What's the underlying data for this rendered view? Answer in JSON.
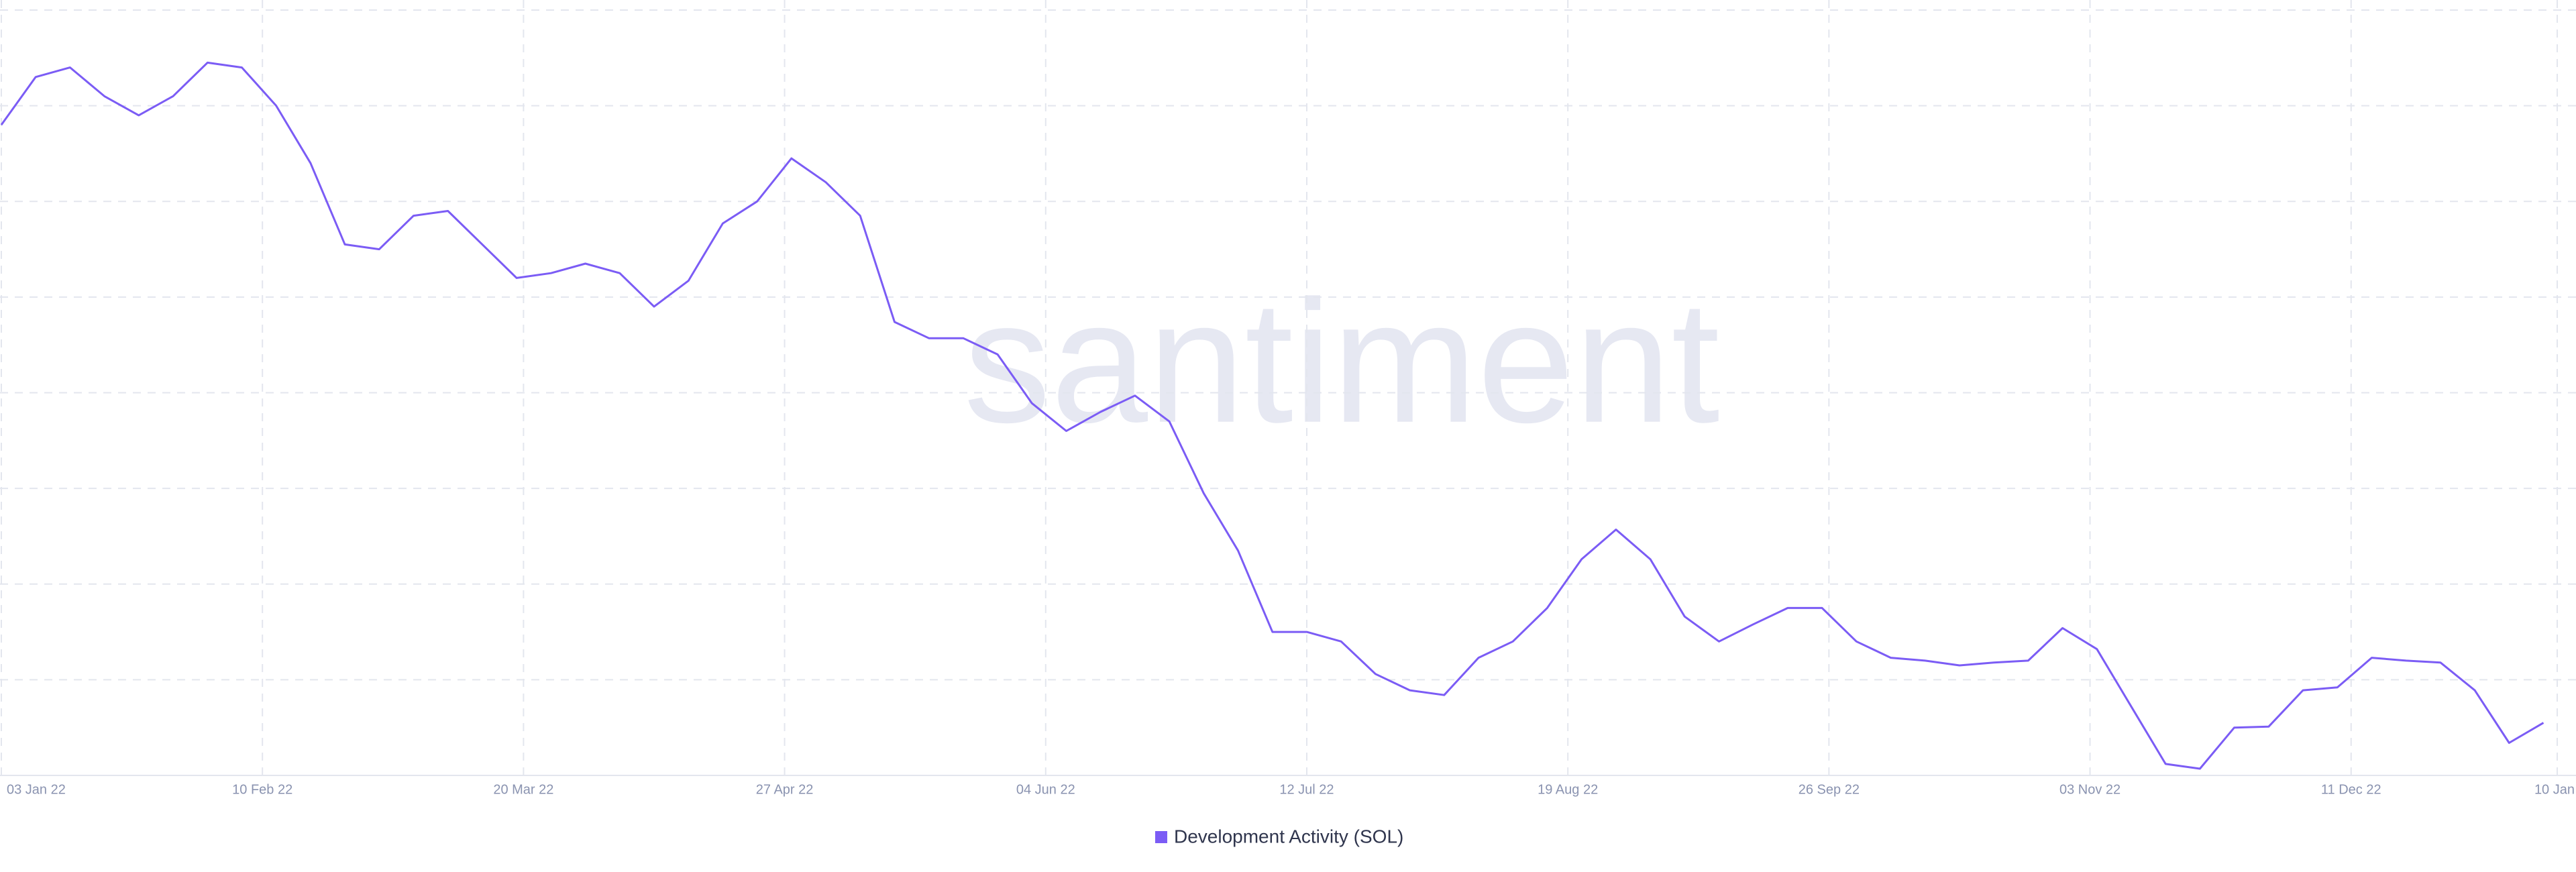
{
  "chart_data": {
    "type": "line",
    "watermark": "santiment",
    "x": [
      "2022-01-03",
      "2022-01-08",
      "2022-01-13",
      "2022-01-18",
      "2022-01-23",
      "2022-01-28",
      "2022-02-02",
      "2022-02-07",
      "2022-02-12",
      "2022-02-17",
      "2022-02-22",
      "2022-02-27",
      "2022-03-04",
      "2022-03-09",
      "2022-03-14",
      "2022-03-19",
      "2022-03-24",
      "2022-03-29",
      "2022-04-03",
      "2022-04-08",
      "2022-04-13",
      "2022-04-18",
      "2022-04-23",
      "2022-04-28",
      "2022-05-03",
      "2022-05-08",
      "2022-05-13",
      "2022-05-18",
      "2022-05-23",
      "2022-05-28",
      "2022-06-02",
      "2022-06-07",
      "2022-06-12",
      "2022-06-17",
      "2022-06-22",
      "2022-06-27",
      "2022-07-02",
      "2022-07-07",
      "2022-07-12",
      "2022-07-17",
      "2022-07-22",
      "2022-07-27",
      "2022-08-01",
      "2022-08-06",
      "2022-08-11",
      "2022-08-16",
      "2022-08-21",
      "2022-08-26",
      "2022-08-31",
      "2022-09-05",
      "2022-09-10",
      "2022-09-15",
      "2022-09-20",
      "2022-09-25",
      "2022-09-30",
      "2022-10-05",
      "2022-10-10",
      "2022-10-15",
      "2022-10-20",
      "2022-10-25",
      "2022-10-30",
      "2022-11-04",
      "2022-11-09",
      "2022-11-14",
      "2022-11-19",
      "2022-11-24",
      "2022-11-29",
      "2022-12-04",
      "2022-12-09",
      "2022-12-14",
      "2022-12-19",
      "2022-12-24",
      "2022-12-29",
      "2023-01-03",
      "2023-01-08"
    ],
    "series": [
      {
        "name": "Development Activity (SOL)",
        "color": "#7b5cf5",
        "values": [
          68,
          73,
          74,
          71,
          69,
          71,
          74.5,
          74,
          70,
          64,
          55.5,
          55,
          58.5,
          59,
          55.5,
          52,
          52.5,
          53.5,
          52.5,
          49,
          51.7,
          57.7,
          60,
          64.5,
          62,
          58.5,
          47.4,
          45.7,
          45.7,
          44,
          38.9,
          36,
          38,
          39.7,
          37,
          29.5,
          23.5,
          15,
          15,
          14,
          10.6,
          8.9,
          8.4,
          12.3,
          14,
          17.5,
          22.6,
          25.7,
          22.6,
          16.6,
          14,
          15.8,
          17.5,
          17.5,
          14,
          12.3,
          12,
          11.5,
          11.8,
          12,
          15.4,
          13.2,
          7.2,
          1.2,
          0.7,
          5,
          5.1,
          8.9,
          9.2,
          12.3,
          12,
          11.8,
          8.9,
          3.4,
          5.5
        ]
      }
    ],
    "xlim": [
      "2022-01-03",
      "2023-01-10"
    ],
    "xticks": [
      {
        "value": "2022-01-03",
        "label": "03 Jan 22"
      },
      {
        "value": "2022-02-10",
        "label": "10 Feb 22"
      },
      {
        "value": "2022-03-20",
        "label": "20 Mar 22"
      },
      {
        "value": "2022-04-27",
        "label": "27 Apr 22"
      },
      {
        "value": "2022-06-04",
        "label": "04 Jun 22"
      },
      {
        "value": "2022-07-12",
        "label": "12 Jul 22"
      },
      {
        "value": "2022-08-19",
        "label": "19 Aug 22"
      },
      {
        "value": "2022-09-26",
        "label": "26 Sep 22"
      },
      {
        "value": "2022-11-03",
        "label": "03 Nov 22"
      },
      {
        "value": "2022-12-11",
        "label": "11 Dec 22"
      },
      {
        "value": "2023-01-10",
        "label": "10 Jan"
      }
    ],
    "ylim": [
      0,
      80
    ],
    "yticks": [
      0,
      10,
      20,
      30,
      40,
      50,
      60,
      70,
      80
    ],
    "ytick_labels": false,
    "grid": true,
    "legend": "bottom"
  }
}
